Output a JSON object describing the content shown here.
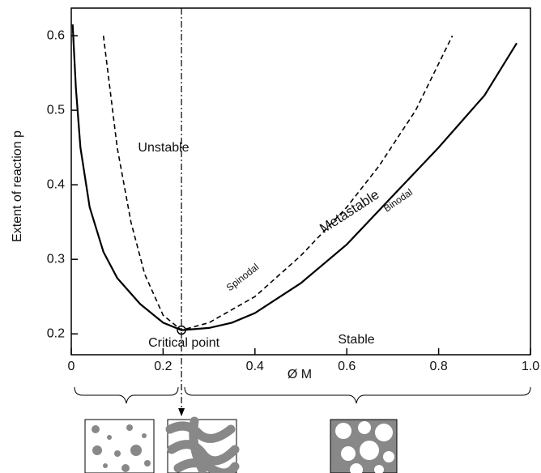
{
  "chart_data": {
    "type": "line",
    "x_label": "Ø M",
    "y_label": "Extent of reaction p",
    "xlim": [
      0,
      1
    ],
    "ylim": [
      0.172,
      0.637
    ],
    "xticks": [
      0,
      0.2,
      0.4,
      0.6,
      0.8,
      {
        "value": 1,
        "label": "1.0"
      }
    ],
    "yticks": [
      0.2,
      0.3,
      0.4,
      0.5,
      0.6
    ],
    "series": [
      {
        "name": "Binodal",
        "color": "#000000",
        "style": "solid",
        "x": [
          0.003,
          0.01,
          0.02,
          0.04,
          0.07,
          0.1,
          0.15,
          0.2,
          0.24,
          0.3,
          0.35,
          0.4,
          0.5,
          0.6,
          0.7,
          0.8,
          0.9,
          0.97
        ],
        "values": [
          0.615,
          0.53,
          0.45,
          0.37,
          0.31,
          0.275,
          0.24,
          0.215,
          0.205,
          0.208,
          0.215,
          0.228,
          0.268,
          0.32,
          0.385,
          0.45,
          0.52,
          0.59
        ]
      },
      {
        "name": "Spinodal",
        "color": "#000000",
        "style": "dashed",
        "x": [
          0.07,
          0.1,
          0.13,
          0.16,
          0.2,
          0.24,
          0.3,
          0.4,
          0.5,
          0.6,
          0.67,
          0.75,
          0.83
        ],
        "values": [
          0.6,
          0.45,
          0.35,
          0.28,
          0.225,
          0.205,
          0.215,
          0.25,
          0.305,
          0.37,
          0.425,
          0.5,
          0.6
        ]
      }
    ],
    "critical_point": {
      "x": 0.24,
      "y": 0.205,
      "label": "Critical point"
    },
    "annotations": [
      "Unstable",
      "Metastable",
      "Stable"
    ]
  }
}
